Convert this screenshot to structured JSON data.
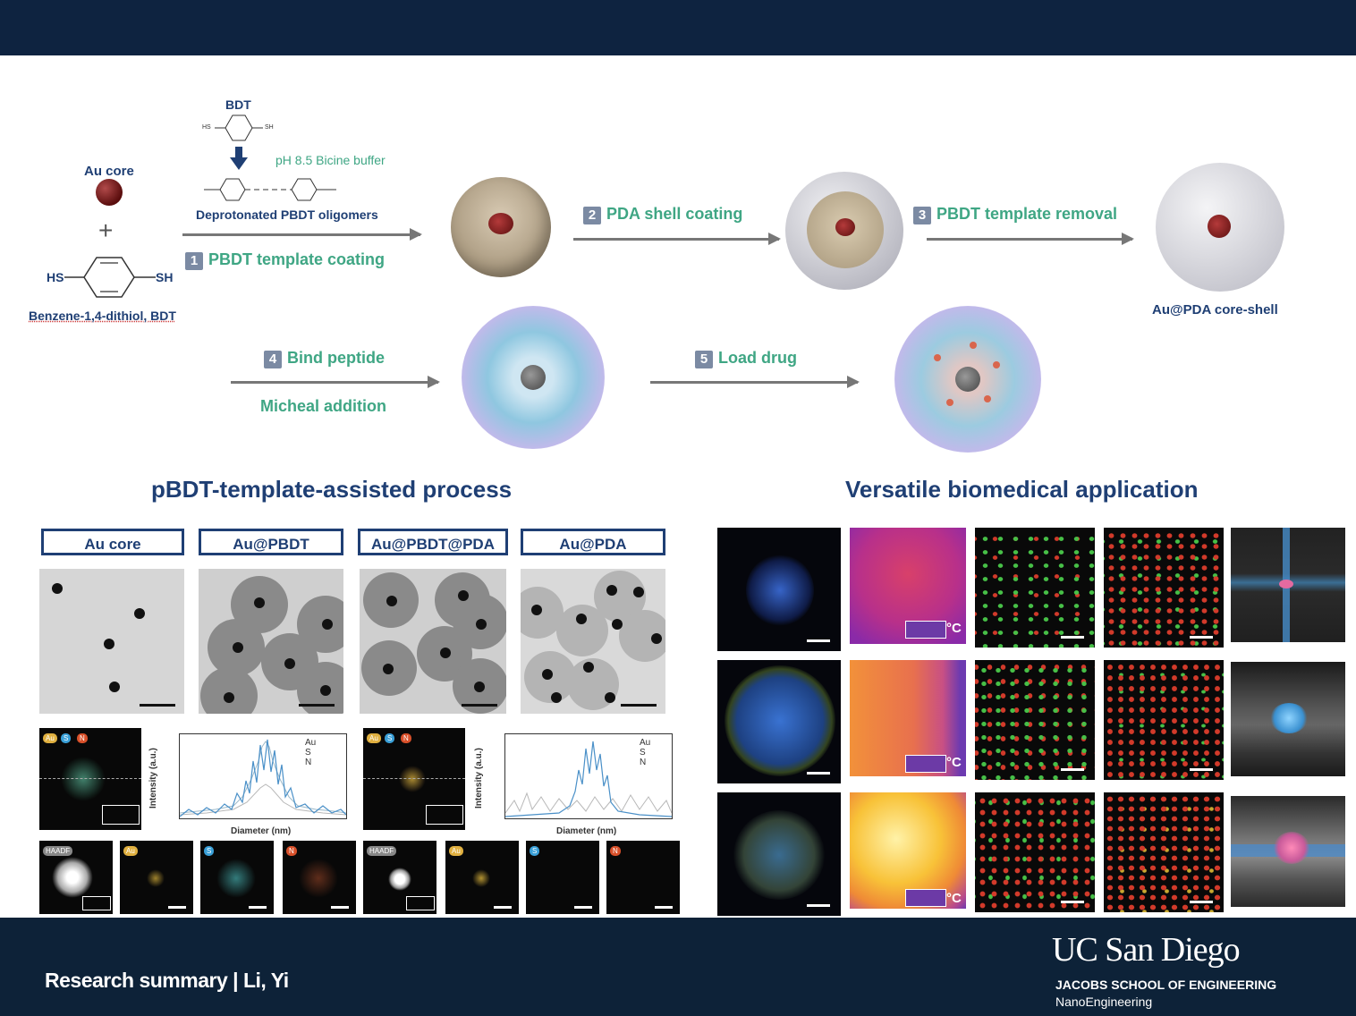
{
  "scheme": {
    "bdt_label": "BDT",
    "hs_small": "HS",
    "sh_small": "SH",
    "au_core_label": "Au core",
    "plus": "+",
    "hs_label": "HS",
    "sh_label": "SH",
    "bdt_full_label": "Benzene-1,4-dithiol, BDT",
    "buffer_label": "pH 8.5 Bicine buffer",
    "oligomer_label": "Deprotonated PBDT oligomers",
    "steps": [
      {
        "num": "1",
        "label": "PBDT template coating"
      },
      {
        "num": "2",
        "label": "PDA shell coating"
      },
      {
        "num": "3",
        "label": "PBDT template removal"
      },
      {
        "num": "4",
        "label": "Bind peptide"
      },
      {
        "num": "5",
        "label": "Load drug"
      }
    ],
    "micheal_label": "Micheal addition",
    "core_shell_label": "Au@PDA core-shell"
  },
  "sections": {
    "left_title": "pBDT-template-assisted process",
    "right_title": "Versatile biomedical application"
  },
  "samples": [
    "Au core",
    "Au@PBDT",
    "Au@PBDT@PDA",
    "Au@PDA"
  ],
  "mapping": {
    "pills": [
      "Au",
      "S",
      "N"
    ],
    "legend": [
      "Au",
      "S",
      "N"
    ],
    "ylabel": "Intensity (a.u.)",
    "xlabel": "Diameter (nm)",
    "channels": [
      "HAADF",
      "Au",
      "S",
      "N"
    ]
  },
  "thermal_unit": "°C",
  "colors": {
    "navy": "#0e2340",
    "blue_text": "#1f3f74",
    "green_text": "#3fa684",
    "au_line": "#4a90c8",
    "s_line": "#9bb8c8",
    "n_line": "#b8b8b8"
  },
  "footer": {
    "title": "Research summary |  Li, Yi",
    "logo": "UC San Diego",
    "school": "JACOBS SCHOOL OF ENGINEERING",
    "dept": "NanoEngineering"
  }
}
